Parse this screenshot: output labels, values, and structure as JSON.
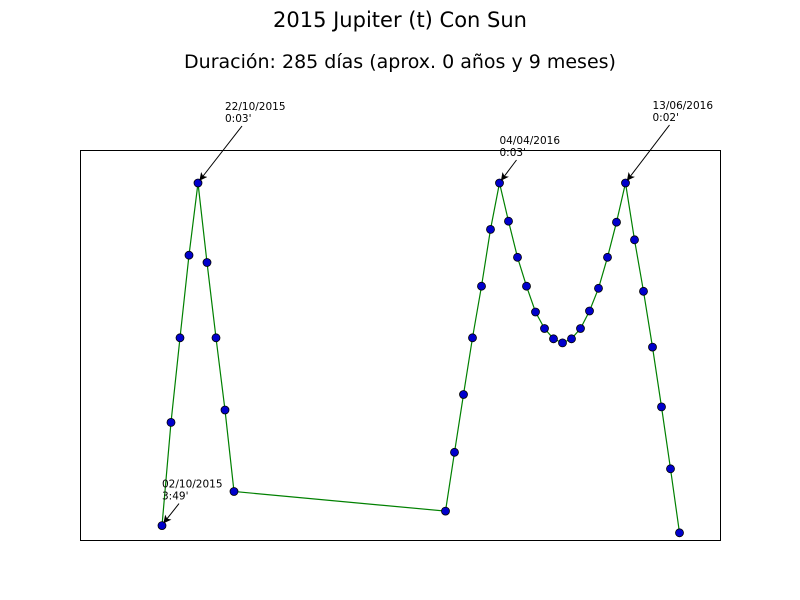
{
  "chart_data": {
    "type": "line",
    "title": "2015 Jupiter (t) Con Sun",
    "subtitle": "Duración: 285 días (aprox. 0 años y 9 meses)",
    "xlabel": "",
    "ylabel": "",
    "grid": false,
    "axes_visible": false,
    "line_color": "#008000",
    "marker_color": "#0000cc",
    "marker_edge_color": "#000000",
    "x_range": [
      -9,
      62
    ],
    "y_range": [
      0.04,
      3.82
    ],
    "series": [
      {
        "points": [
          {
            "x": 0,
            "y": 0.18
          },
          {
            "x": 1,
            "y": 1.18
          },
          {
            "x": 2,
            "y": 2.0
          },
          {
            "x": 3,
            "y": 2.8
          },
          {
            "x": 4,
            "y": 3.5
          },
          {
            "x": 5,
            "y": 2.73
          },
          {
            "x": 6,
            "y": 2.0
          },
          {
            "x": 7,
            "y": 1.3
          },
          {
            "x": 8,
            "y": 0.51
          },
          {
            "x": 31.5,
            "y": 0.32
          },
          {
            "x": 32.5,
            "y": 0.89
          },
          {
            "x": 33.5,
            "y": 1.45
          },
          {
            "x": 34.5,
            "y": 2.0
          },
          {
            "x": 35.5,
            "y": 2.5
          },
          {
            "x": 36.5,
            "y": 3.05
          },
          {
            "x": 37.5,
            "y": 3.5
          },
          {
            "x": 38.5,
            "y": 3.13
          },
          {
            "x": 39.5,
            "y": 2.78
          },
          {
            "x": 40.5,
            "y": 2.5
          },
          {
            "x": 41.5,
            "y": 2.25
          },
          {
            "x": 42.5,
            "y": 2.09
          },
          {
            "x": 43.5,
            "y": 1.99
          },
          {
            "x": 44.5,
            "y": 1.95
          },
          {
            "x": 45.5,
            "y": 1.99
          },
          {
            "x": 46.5,
            "y": 2.09
          },
          {
            "x": 47.5,
            "y": 2.26
          },
          {
            "x": 48.5,
            "y": 2.48
          },
          {
            "x": 49.5,
            "y": 2.78
          },
          {
            "x": 50.5,
            "y": 3.12
          },
          {
            "x": 51.5,
            "y": 3.5
          },
          {
            "x": 52.5,
            "y": 2.95
          },
          {
            "x": 53.5,
            "y": 2.45
          },
          {
            "x": 54.5,
            "y": 1.91
          },
          {
            "x": 55.5,
            "y": 1.33
          },
          {
            "x": 56.5,
            "y": 0.73
          },
          {
            "x": 57.5,
            "y": 0.11
          }
        ]
      }
    ],
    "annotations": [
      {
        "date": "02/10/2015",
        "value": "3:49'",
        "point_index": 0
      },
      {
        "date": "22/10/2015",
        "value": "0:03'",
        "point_index": 4
      },
      {
        "date": "04/04/2016",
        "value": "0:03'",
        "point_index": 15
      },
      {
        "date": "13/06/2016",
        "value": "0:02'",
        "point_index": 29
      }
    ]
  }
}
